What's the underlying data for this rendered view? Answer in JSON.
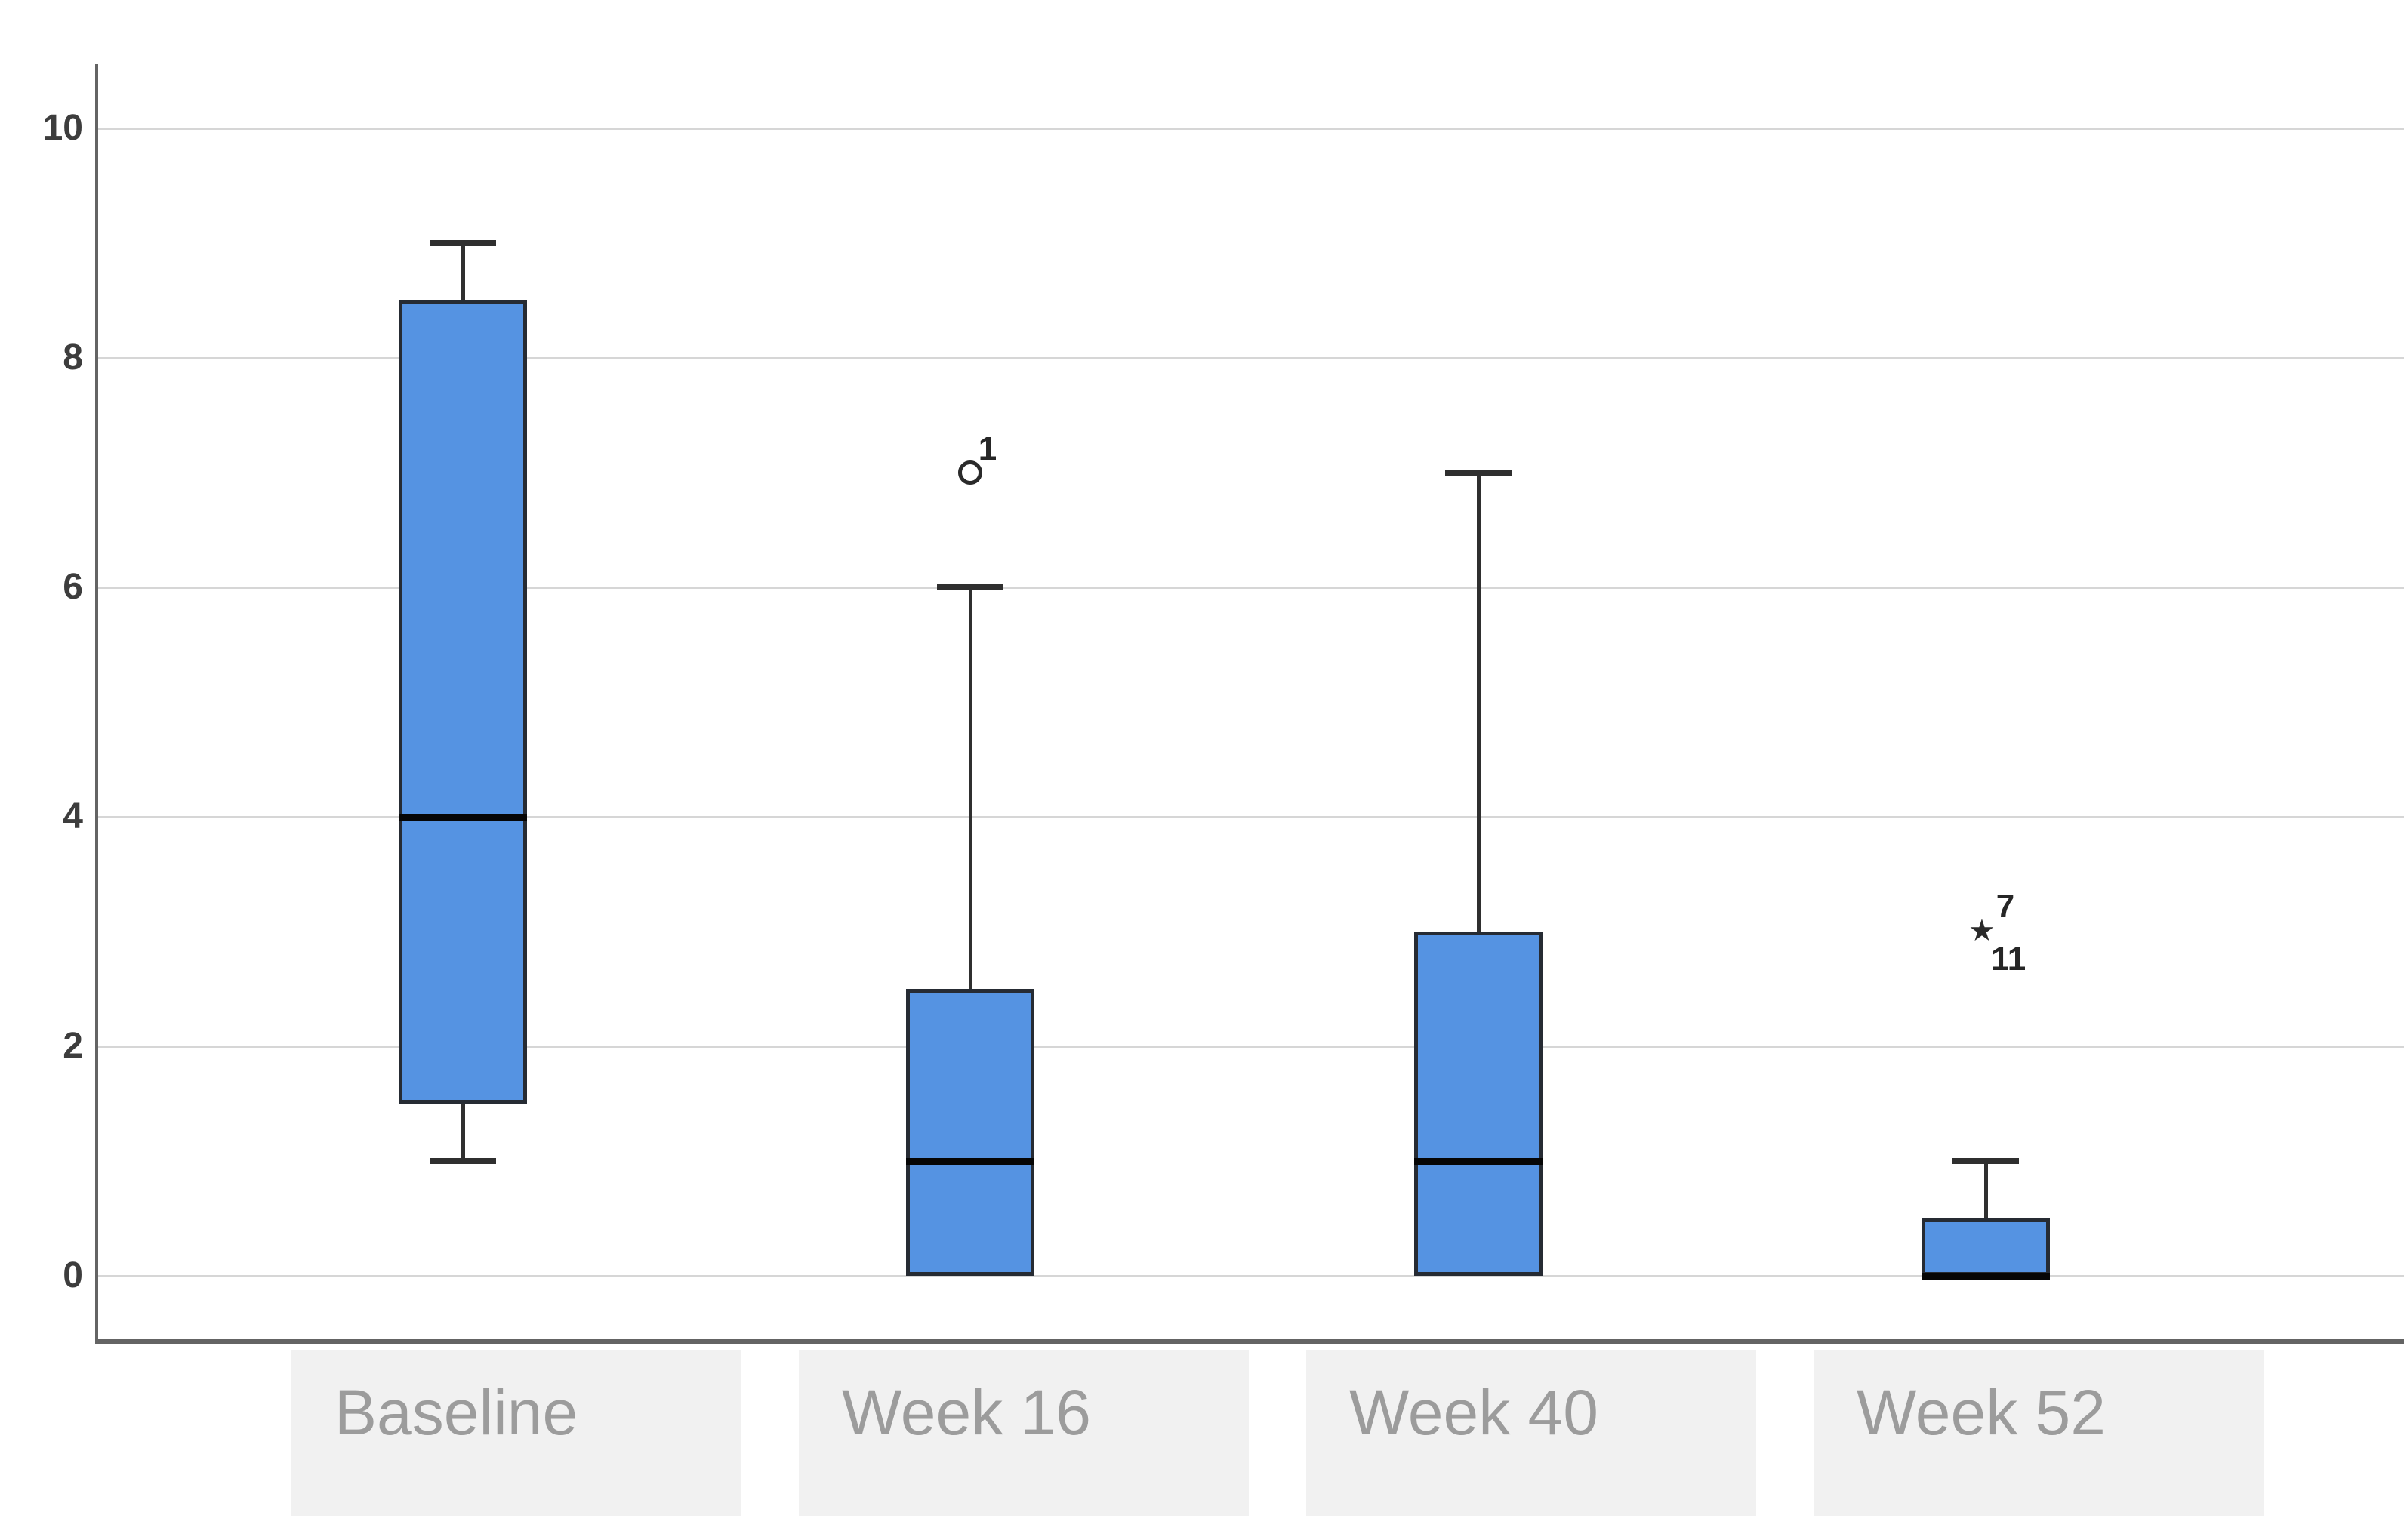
{
  "chart_data": {
    "type": "boxplot",
    "title": "",
    "xlabel": "",
    "ylabel": "",
    "categories": [
      "Baseline",
      "Week 16",
      "Week 40",
      "Week 52"
    ],
    "y_axis": {
      "min": 0,
      "max": 10,
      "tick_values": [
        0,
        2,
        4,
        6,
        8,
        10
      ],
      "tick_labels": [
        "0",
        "2",
        "4",
        "6",
        "8",
        "10"
      ]
    },
    "grid": true,
    "legend": false,
    "series": [
      {
        "category": "Baseline",
        "whisker_low": 1,
        "q1": 1.5,
        "median": 4,
        "q3": 8.5,
        "whisker_high": 9,
        "outliers": []
      },
      {
        "category": "Week 16",
        "whisker_low": 0,
        "q1": 0,
        "median": 1,
        "q3": 2.5,
        "whisker_high": 6,
        "outliers": [
          {
            "value": 7,
            "marker": "circle",
            "labels": [
              "1"
            ]
          }
        ]
      },
      {
        "category": "Week 40",
        "whisker_low": 0,
        "q1": 0,
        "median": 1,
        "q3": 3,
        "whisker_high": 7,
        "outliers": []
      },
      {
        "category": "Week 52",
        "whisker_low": 0,
        "q1": 0,
        "median": 0,
        "q3": 0.5,
        "whisker_high": 1,
        "outliers": [
          {
            "value": 3,
            "marker": "star",
            "labels": [
              "7",
              "11"
            ]
          }
        ]
      }
    ],
    "colors": {
      "box_fill": "#5593E2",
      "box_border": "#262B33",
      "median": "#060606",
      "whisker": "#2F2F2F",
      "gridline": "#D6D6D6",
      "axis": "#646464",
      "tick_label": "#3D3D3D",
      "outlier_marker": "#2A2A2A",
      "outlier_label": "#262626",
      "category_label": "#9C9C9C",
      "category_box_fill": "#F1F1F1",
      "background": "#FFFFFF"
    }
  }
}
